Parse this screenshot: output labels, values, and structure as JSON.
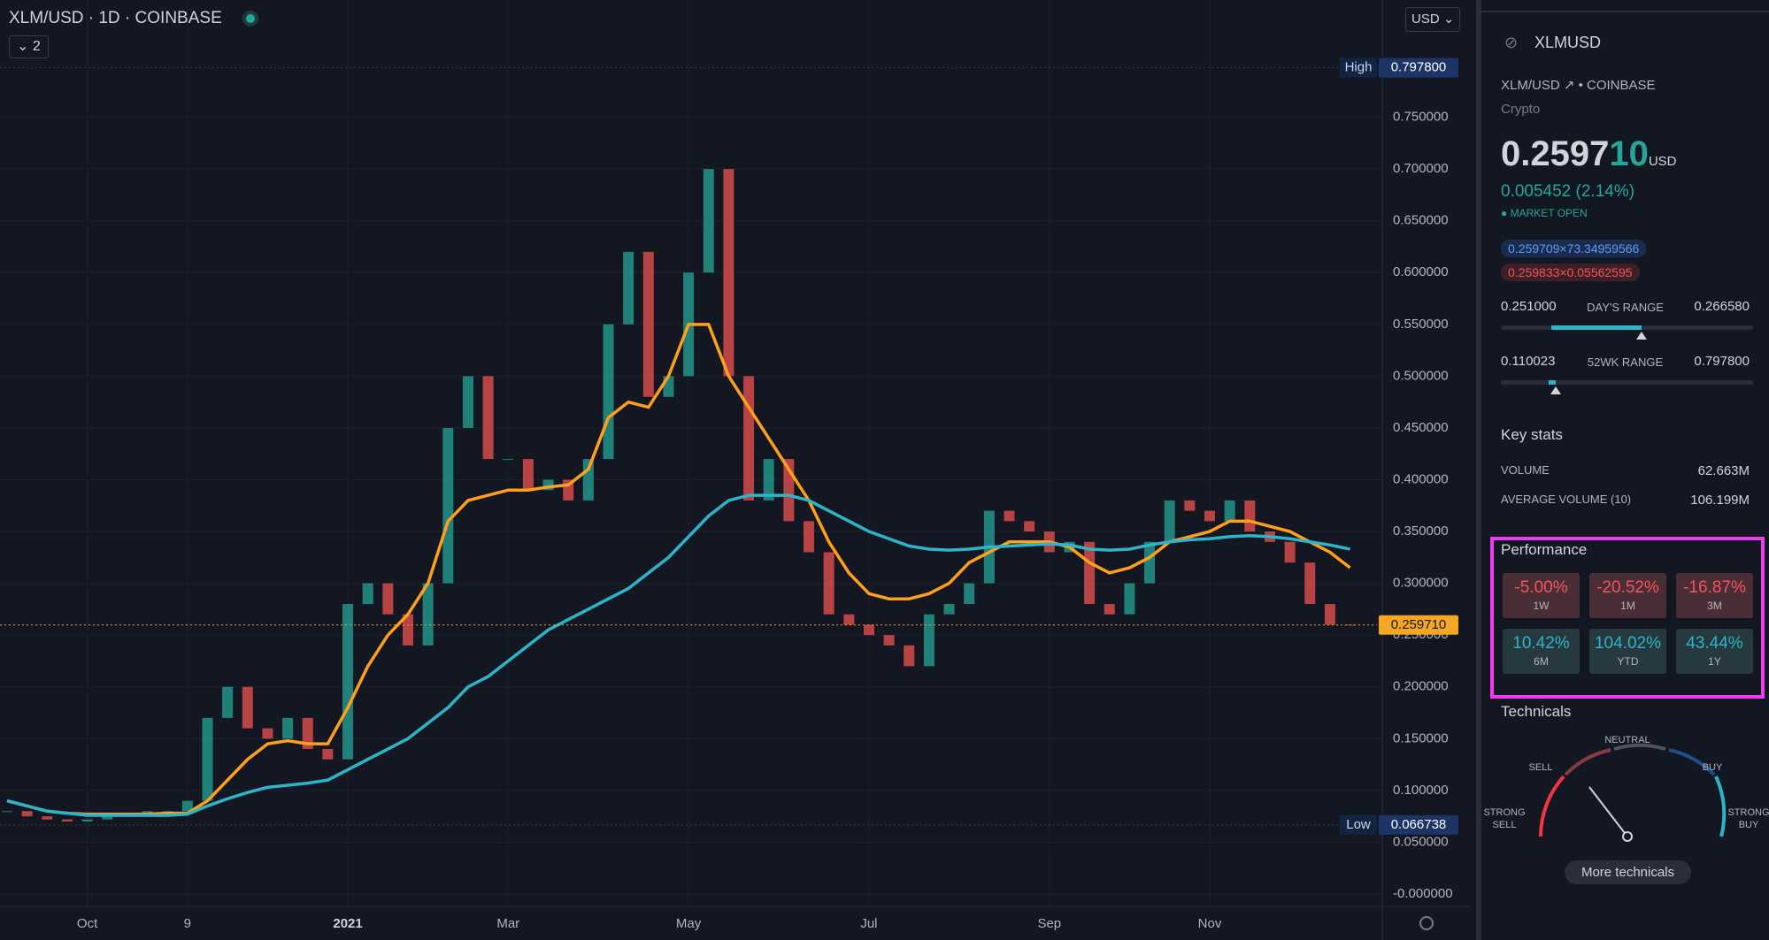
{
  "header": {
    "symbol": "XLM/USD",
    "interval": "1D",
    "exchange": "COINBASE",
    "indicators": "2",
    "currency": "USD"
  },
  "chart_data": {
    "type": "candlestick",
    "categories": [
      null,
      null,
      null,
      null,
      "Oct",
      null,
      null,
      null,
      null,
      "9",
      null,
      null,
      null,
      null,
      null,
      null,
      null,
      "2021",
      null,
      null,
      null,
      null,
      null,
      null,
      null,
      "Mar",
      null,
      null,
      null,
      null,
      null,
      null,
      null,
      null,
      "May",
      null,
      null,
      null,
      null,
      null,
      null,
      null,
      null,
      "Jul",
      null,
      null,
      null,
      null,
      null,
      null,
      null,
      null,
      "Sep",
      null,
      null,
      null,
      null,
      null,
      null,
      null,
      "Nov",
      null,
      null,
      null,
      null,
      null,
      null,
      null
    ],
    "values": [
      0.08,
      0.075,
      0.072,
      0.07,
      0.072,
      0.075,
      0.078,
      0.08,
      0.08,
      0.09,
      0.17,
      0.2,
      0.16,
      0.15,
      0.17,
      0.14,
      0.13,
      0.28,
      0.3,
      0.27,
      0.24,
      0.3,
      0.45,
      0.5,
      0.42,
      0.42,
      0.39,
      0.4,
      0.38,
      0.42,
      0.55,
      0.62,
      0.48,
      0.5,
      0.6,
      0.7,
      0.5,
      0.38,
      0.42,
      0.36,
      0.33,
      0.27,
      0.26,
      0.25,
      0.24,
      0.22,
      0.27,
      0.28,
      0.3,
      0.37,
      0.36,
      0.35,
      0.33,
      0.34,
      0.28,
      0.27,
      0.3,
      0.34,
      0.38,
      0.37,
      0.36,
      0.38,
      0.35,
      0.34,
      0.32,
      0.28,
      0.26,
      0.2597
    ],
    "up_color": "#26a69a",
    "down_color": "#ef5350",
    "series": [
      {
        "color": "#ff9f1a",
        "values": [
          0.09,
          0.085,
          0.08,
          0.078,
          0.077,
          0.077,
          0.077,
          0.077,
          0.078,
          0.078,
          0.09,
          0.11,
          0.13,
          0.145,
          0.148,
          0.145,
          0.145,
          0.18,
          0.22,
          0.25,
          0.27,
          0.3,
          0.36,
          0.38,
          0.385,
          0.39,
          0.39,
          0.393,
          0.395,
          0.41,
          0.46,
          0.475,
          0.47,
          0.5,
          0.55,
          0.55,
          0.5,
          0.47,
          0.44,
          0.41,
          0.38,
          0.34,
          0.31,
          0.29,
          0.285,
          0.285,
          0.29,
          0.3,
          0.32,
          0.33,
          0.34,
          0.34,
          0.34,
          0.335,
          0.32,
          0.31,
          0.315,
          0.325,
          0.34,
          0.345,
          0.35,
          0.36,
          0.36,
          0.355,
          0.35,
          0.34,
          0.33,
          0.315
        ]
      },
      {
        "color": "#2cb5c9",
        "values": [
          0.09,
          0.085,
          0.08,
          0.078,
          0.076,
          0.076,
          0.076,
          0.076,
          0.076,
          0.077,
          0.085,
          0.092,
          0.098,
          0.103,
          0.105,
          0.107,
          0.11,
          0.12,
          0.13,
          0.14,
          0.15,
          0.165,
          0.18,
          0.2,
          0.21,
          0.225,
          0.24,
          0.255,
          0.265,
          0.275,
          0.285,
          0.295,
          0.31,
          0.325,
          0.345,
          0.365,
          0.38,
          0.385,
          0.385,
          0.385,
          0.38,
          0.37,
          0.36,
          0.35,
          0.343,
          0.336,
          0.333,
          0.332,
          0.333,
          0.335,
          0.336,
          0.337,
          0.338,
          0.337,
          0.333,
          0.332,
          0.333,
          0.337,
          0.34,
          0.342,
          0.343,
          0.345,
          0.346,
          0.345,
          0.343,
          0.34,
          0.337,
          0.333
        ]
      }
    ],
    "ylim": [
      -0.0077,
      0.8632
    ],
    "yticks": [
      {
        "value": 0,
        "label": "-0.000000"
      },
      {
        "value": 0.05,
        "label": "0.050000"
      },
      {
        "value": 0.1,
        "label": "0.100000"
      },
      {
        "value": 0.15,
        "label": "0.150000"
      },
      {
        "value": 0.2,
        "label": "0.200000"
      },
      {
        "value": 0.25,
        "label": "0.250000"
      },
      {
        "value": 0.3,
        "label": "0.300000"
      },
      {
        "value": 0.35,
        "label": "0.350000"
      },
      {
        "value": 0.4,
        "label": "0.400000"
      },
      {
        "value": 0.45,
        "label": "0.450000"
      },
      {
        "value": 0.5,
        "label": "0.500000"
      },
      {
        "value": 0.55,
        "label": "0.550000"
      },
      {
        "value": 0.6,
        "label": "0.600000"
      },
      {
        "value": 0.65,
        "label": "0.650000"
      },
      {
        "value": 0.7,
        "label": "0.700000"
      },
      {
        "value": 0.75,
        "label": "0.750000"
      }
    ],
    "grid": true,
    "markers": [
      {
        "label": "High",
        "value": 0.7978,
        "value_label": "0.797800"
      },
      {
        "label": "Low",
        "value": 0.066738,
        "value_label": "0.066738"
      }
    ],
    "last": {
      "value": 0.25971,
      "value_label": "0.259710",
      "color": "#f5a623"
    }
  },
  "panel": {
    "ticker": "XLMUSD",
    "symbol": "XLM/USD",
    "exchange": "COINBASE",
    "asset_class": "Crypto",
    "price_main": "0.2597",
    "price_tail": "10",
    "price_currency": "USD",
    "change": "0.005452 (2.14%)",
    "status": "MARKET OPEN",
    "bid": "0.259709×73.34959566",
    "ask": "0.259833×0.05562595",
    "day_range": {
      "label": "DAY'S RANGE",
      "low": {
        "value": 0.251,
        "label": "0.251000"
      },
      "high": {
        "value": 0.26658,
        "label": "0.266580"
      }
    },
    "week52_range": {
      "label": "52WK RANGE",
      "low": {
        "value": 0.110023,
        "label": "0.110023"
      },
      "high": {
        "value": 0.7978,
        "label": "0.797800"
      }
    },
    "key_stats": {
      "title": "Key stats",
      "rows": [
        [
          "VOLUME",
          "62.663M"
        ],
        [
          "AVERAGE VOLUME (10)",
          "106.199M"
        ]
      ]
    },
    "performance": {
      "title": "Performance",
      "tiles": [
        [
          "-5.00%",
          "1W"
        ],
        [
          "-20.52%",
          "1M"
        ],
        [
          "-16.87%",
          "3M"
        ],
        [
          "10.42%",
          "6M"
        ],
        [
          "104.02%",
          "YTD"
        ],
        [
          "43.44%",
          "1Y"
        ]
      ]
    },
    "technicals": {
      "title": "Technicals",
      "gauge": [
        "STRONG\nSELL",
        "SELL",
        "NEUTRAL",
        "BUY",
        "STRONG\nBUY"
      ],
      "button": "More technicals"
    }
  }
}
